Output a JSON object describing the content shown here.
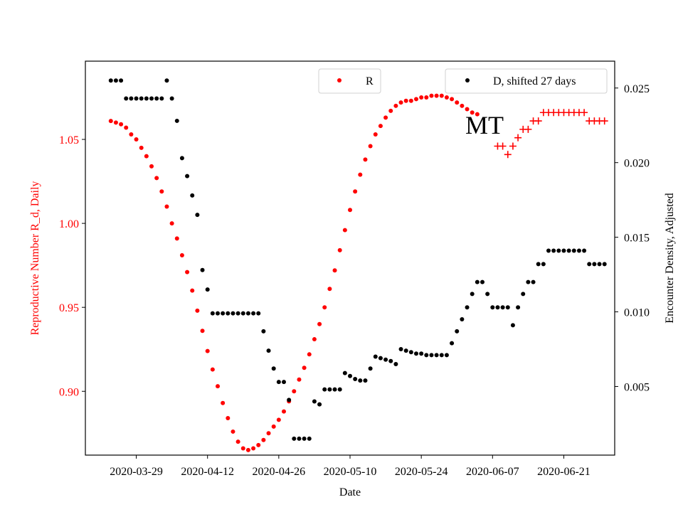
{
  "chart_data": {
    "type": "scatter",
    "title": "",
    "annotation": "MT",
    "xlabel": "Date",
    "ylabel_left": "Reproductive Number R_d, Daily",
    "ylabel_right": "Encounter Density, Adjusted",
    "x_tick_labels": [
      "2020-03-29",
      "2020-04-12",
      "2020-04-26",
      "2020-05-10",
      "2020-05-24",
      "2020-06-07",
      "2020-06-21"
    ],
    "left_ticks": [
      "0.90",
      "0.95",
      "1.00",
      "1.05"
    ],
    "right_ticks": [
      "0.005",
      "0.010",
      "0.015",
      "0.020",
      "0.025"
    ],
    "ylim_left": [
      0.862,
      1.0966
    ],
    "ylim_right": [
      0.0004,
      0.0268
    ],
    "xlim": [
      "2020-03-19",
      "2020-07-01"
    ],
    "legend": {
      "r_label": "R",
      "d_label": "D, shifted 27 days",
      "r_position": "top-center",
      "d_position": "top-right"
    },
    "colors": {
      "r": "#ff0000",
      "d": "#000000",
      "axis_left": "#ff0000",
      "axis_right": "#000000"
    },
    "series": [
      {
        "name": "R",
        "axis": "left",
        "marker": "dot",
        "color": "#ff0000",
        "x_start": "2020-03-24",
        "values": [
          1.061,
          1.06,
          1.059,
          1.057,
          1.053,
          1.05,
          1.045,
          1.04,
          1.034,
          1.027,
          1.019,
          1.01,
          1.0,
          0.991,
          0.981,
          0.971,
          0.96,
          0.948,
          0.936,
          0.924,
          0.913,
          0.903,
          0.893,
          0.884,
          0.876,
          0.87,
          0.866,
          0.865,
          0.866,
          0.868,
          0.871,
          0.875,
          0.879,
          0.883,
          0.888,
          0.894,
          0.9,
          0.907,
          0.914,
          0.922,
          0.931,
          0.94,
          0.95,
          0.961,
          0.972,
          0.984,
          0.996,
          1.008,
          1.019,
          1.029,
          1.038,
          1.046,
          1.053,
          1.058,
          1.063,
          1.067,
          1.07,
          1.072,
          1.073,
          1.073,
          1.074,
          1.075,
          1.075,
          1.076,
          1.076,
          1.076,
          1.075,
          1.074,
          1.072,
          1.07,
          1.068,
          1.066,
          1.065
        ]
      },
      {
        "name": "",
        "axis": "left",
        "marker": "plus",
        "color": "#ff0000",
        "x_start": "2020-06-08",
        "values": [
          1.046,
          1.046,
          1.041,
          1.046,
          1.051,
          1.056,
          1.056,
          1.061,
          1.061,
          1.066,
          1.066,
          1.066,
          1.066,
          1.066,
          1.066,
          1.066,
          1.066,
          1.066,
          1.061,
          1.061,
          1.061,
          1.061
        ]
      },
      {
        "name": "D, shifted 27 days",
        "axis": "right",
        "marker": "dot",
        "color": "#000000",
        "x_start": "2020-03-24",
        "values": [
          0.0255,
          0.0255,
          0.0255,
          0.0243,
          0.0243,
          0.0243,
          0.0243,
          0.0243,
          0.0243,
          0.0243,
          0.0243,
          0.0255,
          0.0243,
          0.0228,
          0.0203,
          0.0191,
          0.0178,
          0.0165,
          0.0128,
          0.0115,
          0.0099,
          0.0099,
          0.0099,
          0.0099,
          0.0099,
          0.0099,
          0.0099,
          0.0099,
          0.0099,
          0.0099,
          0.0087,
          0.0074,
          0.0062,
          0.0053,
          0.0053,
          0.0041,
          0.0015,
          0.0015,
          0.0015,
          0.0015,
          0.004,
          0.0038,
          0.0048,
          0.0048,
          0.0048,
          0.0048,
          0.0059,
          0.0057,
          0.0055,
          0.0054,
          0.0054,
          0.0062,
          0.007,
          0.0069,
          0.0068,
          0.0067,
          0.0065,
          0.0075,
          0.0074,
          0.0073,
          0.0072,
          0.0072,
          0.0071,
          0.0071,
          0.0071,
          0.0071,
          0.0071,
          0.0079,
          0.0087,
          0.0095,
          0.0103,
          0.0112,
          0.012,
          0.012,
          0.0112,
          0.0103,
          0.0103,
          0.0103,
          0.0103,
          0.0091,
          0.0103,
          0.0112,
          0.012,
          0.012,
          0.0132,
          0.0132,
          0.0141,
          0.0141,
          0.0141,
          0.0141,
          0.0141,
          0.0141,
          0.0141,
          0.0141,
          0.0132,
          0.0132,
          0.0132,
          0.0132
        ]
      }
    ]
  }
}
